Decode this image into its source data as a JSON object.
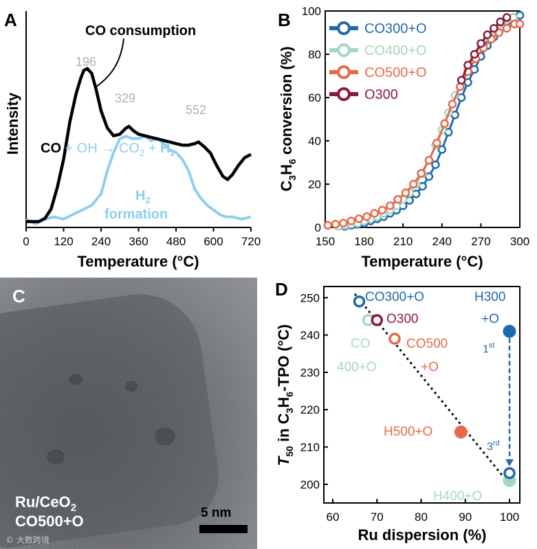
{
  "figure": {
    "panels": {
      "A": {
        "letter": "A"
      },
      "B": {
        "letter": "B"
      },
      "C": {
        "letter": "C",
        "sample_line1": "Ru/CeO",
        "sample_sub": "2",
        "sample_line2": "CO500+O",
        "scale": "5 nm"
      },
      "D": {
        "letter": "D"
      }
    },
    "watermark": "© 大数跨境"
  },
  "chart_data": [
    {
      "panel": "A",
      "type": "line",
      "xlabel": "Temperature (°C)",
      "ylabel": "Intensity",
      "xlim": [
        0,
        720
      ],
      "xticks": [
        0,
        120,
        240,
        360,
        480,
        600,
        720
      ],
      "annotations": {
        "co_consumption": "CO consumption",
        "peak_196": "196",
        "peak_329": "329",
        "peak_552": "552",
        "h2_formation_1": "H",
        "h2_formation_sub": "2",
        "h2_formation_2": "formation",
        "reaction": {
          "co": "CO",
          "plus_oh": " + OH → CO",
          "sub2": "2",
          "plus": " + ",
          "h2": "H",
          "h2sub": "2"
        }
      },
      "series": [
        {
          "name": "CO consumption",
          "color": "#000000",
          "x": [
            0,
            40,
            60,
            80,
            100,
            120,
            140,
            160,
            175,
            185,
            196,
            210,
            225,
            240,
            260,
            280,
            300,
            320,
            329,
            345,
            360,
            380,
            400,
            420,
            440,
            460,
            480,
            500,
            520,
            540,
            552,
            570,
            590,
            610,
            630,
            645,
            660,
            680,
            700,
            720
          ],
          "y": [
            0.02,
            0.02,
            0.04,
            0.1,
            0.24,
            0.42,
            0.66,
            0.84,
            0.94,
            0.99,
            1.0,
            0.97,
            0.86,
            0.73,
            0.62,
            0.57,
            0.58,
            0.62,
            0.63,
            0.6,
            0.58,
            0.57,
            0.56,
            0.55,
            0.54,
            0.53,
            0.52,
            0.51,
            0.51,
            0.52,
            0.53,
            0.5,
            0.46,
            0.38,
            0.31,
            0.29,
            0.32,
            0.38,
            0.43,
            0.45
          ]
        },
        {
          "name": "H2 formation",
          "color": "#8ecfef",
          "x": [
            0,
            30,
            60,
            90,
            120,
            150,
            180,
            210,
            240,
            260,
            280,
            300,
            320,
            340,
            360,
            380,
            400,
            420,
            440,
            460,
            480,
            500,
            520,
            540,
            560,
            580,
            600,
            620,
            640,
            660,
            690,
            720
          ],
          "y": [
            0.03,
            0.01,
            0.03,
            0.04,
            0.03,
            0.05,
            0.07,
            0.09,
            0.14,
            0.24,
            0.32,
            0.38,
            0.39,
            0.38,
            0.38,
            0.39,
            0.37,
            0.38,
            0.36,
            0.33,
            0.32,
            0.29,
            0.24,
            0.16,
            0.12,
            0.09,
            0.07,
            0.05,
            0.04,
            0.04,
            0.03,
            0.04
          ]
        }
      ]
    },
    {
      "panel": "B",
      "type": "line",
      "xlabel": "Temperature (°C)",
      "ylabel": {
        "pre": "C",
        "sub1": "3",
        "mid": "H",
        "sub2": "6",
        "post": " conversion (%)"
      },
      "xlim": [
        150,
        300
      ],
      "ylim": [
        0,
        100
      ],
      "xticks": [
        150,
        180,
        210,
        240,
        270,
        300
      ],
      "yticks": [
        0,
        20,
        40,
        60,
        80,
        100
      ],
      "legend_position": "top-left",
      "series": [
        {
          "name": "CO300+O",
          "color": "#1f6aad",
          "x": [
            165,
            170,
            175,
            180,
            185,
            190,
            195,
            200,
            205,
            210,
            215,
            220,
            225,
            230,
            235,
            240,
            245,
            250,
            255,
            260,
            265,
            270,
            275,
            280,
            285,
            290,
            295,
            300
          ],
          "y": [
            0.5,
            1,
            1.5,
            2,
            3,
            4,
            5,
            6.5,
            8,
            10,
            12.5,
            15.5,
            19,
            23.5,
            29,
            36,
            44,
            52,
            60,
            67,
            73,
            79,
            84,
            88,
            92,
            95,
            97,
            98
          ]
        },
        {
          "name": "CO400+O",
          "color": "#a5d7c3",
          "x": [
            160,
            165,
            170,
            175,
            180,
            185,
            190,
            195,
            200,
            205,
            210,
            215,
            220,
            225,
            230,
            235,
            240,
            245,
            250,
            255,
            260,
            265,
            270,
            275,
            280,
            285,
            290,
            295
          ],
          "y": [
            0.5,
            1,
            1.5,
            2,
            3,
            4,
            5,
            6.5,
            8,
            10,
            13,
            16,
            20,
            25,
            31,
            38,
            45,
            53,
            61,
            68,
            74,
            79,
            84,
            88,
            91,
            94,
            96,
            97
          ]
        },
        {
          "name": "CO500+O",
          "color": "#e8694a",
          "x": [
            152,
            158,
            164,
            170,
            176,
            182,
            188,
            194,
            200,
            206,
            212,
            218,
            224,
            230,
            236,
            242,
            248,
            254,
            260,
            266,
            272,
            278,
            284,
            290,
            296,
            300
          ],
          "y": [
            1,
            1.5,
            2,
            3,
            4,
            5,
            6.5,
            8,
            10,
            13,
            16,
            20,
            25,
            31,
            39,
            48,
            57,
            65,
            72,
            78,
            83,
            87,
            90,
            92,
            94,
            94
          ]
        },
        {
          "name": "O300",
          "color": "#8b1a3a",
          "x": [
            255,
            260,
            265,
            270,
            275,
            280,
            285,
            290
          ],
          "y": [
            68,
            75,
            80,
            85,
            89,
            92,
            95,
            97
          ]
        }
      ]
    },
    {
      "panel": "D",
      "type": "scatter",
      "xlabel": "Ru dispersion (%)",
      "ylabel": {
        "t": "T",
        "tsub": "50",
        "pre": " in C",
        "sub1": "3",
        "mid": "H",
        "sub2": "6",
        "post": "-TPO (°C)"
      },
      "xlim": [
        60,
        100
      ],
      "ylim": [
        195,
        253
      ],
      "xticks": [
        60,
        70,
        80,
        90,
        100
      ],
      "yticks": [
        200,
        210,
        220,
        230,
        240,
        250
      ],
      "fit_line": {
        "x": [
          65,
          100
        ],
        "y": [
          251,
          200
        ]
      },
      "points": [
        {
          "label": "CO300+O",
          "x": 66,
          "y": 249,
          "color": "#1f6aad",
          "filled": false
        },
        {
          "label": "O300",
          "x": 70,
          "y": 244,
          "color": "#8b1a3a",
          "filled": false
        },
        {
          "label": "CO400+O",
          "x": 68,
          "y": 244,
          "color": "#a5d7c3",
          "filled": false
        },
        {
          "label": "CO500+O",
          "x": 74,
          "y": 239,
          "color": "#e8694a",
          "filled": false
        },
        {
          "label": "H500+O",
          "x": 89,
          "y": 214,
          "color": "#e8694a",
          "filled": true
        },
        {
          "label": "H300+O",
          "x": 100,
          "y": 241,
          "color": "#1f6aad",
          "filled": true
        },
        {
          "label": "H300+O 3rd",
          "x": 100,
          "y": 203,
          "color": "#1f6aad",
          "filled": false
        },
        {
          "label": "H400+O",
          "x": 100,
          "y": 201,
          "color": "#a5d7c3",
          "filled": true
        }
      ],
      "labels": {
        "co300": "CO300+O",
        "o300": "O300",
        "co400_a": "CO",
        "co400_b": "400+O",
        "co500_a": "CO500",
        "co500_b": "+O",
        "h500": "H500+O",
        "h300_a": "H300",
        "h300_b": "+O",
        "first": "1",
        "first_sup": "st",
        "third": "3",
        "third_sup": "rd",
        "h400": "H400+O"
      }
    }
  ]
}
